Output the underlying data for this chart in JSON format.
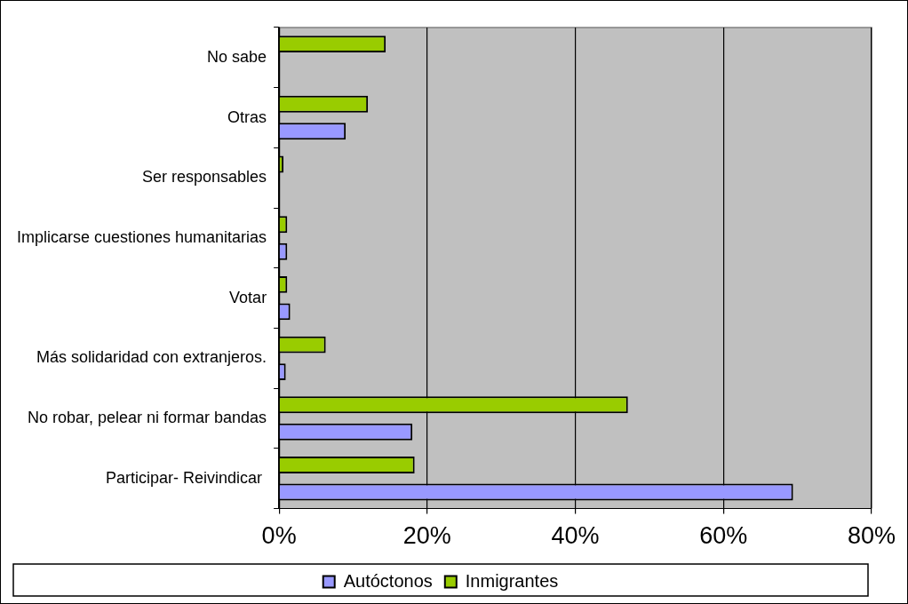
{
  "chart_data": {
    "type": "bar",
    "orientation": "horizontal",
    "categories": [
      "No sabe",
      "Otras",
      "Ser responsables",
      "Implicarse cuestiones humanitarias",
      "Votar",
      "Más solidaridad con extranjeros.",
      "No robar, pelear ni formar bandas",
      "Participar- Reivindicar "
    ],
    "series": [
      {
        "name": "Autóctonos",
        "color": "#9999ff",
        "values": [
          null,
          9.0,
          null,
          1.1,
          1.5,
          0.9,
          18.0,
          69.4
        ]
      },
      {
        "name": "Inmigrantes",
        "color": "#99cc00",
        "values": [
          14.4,
          12.0,
          0.6,
          1.1,
          1.1,
          6.3,
          47.1,
          18.3
        ]
      }
    ],
    "xlim": [
      0,
      80
    ],
    "xticks": [
      {
        "value": 0,
        "label": "0%"
      },
      {
        "value": 20,
        "label": "20%"
      },
      {
        "value": 40,
        "label": "40%"
      },
      {
        "value": 60,
        "label": "60%"
      },
      {
        "value": 80,
        "label": "80%"
      }
    ],
    "grid": "x",
    "legend": "bottom"
  }
}
